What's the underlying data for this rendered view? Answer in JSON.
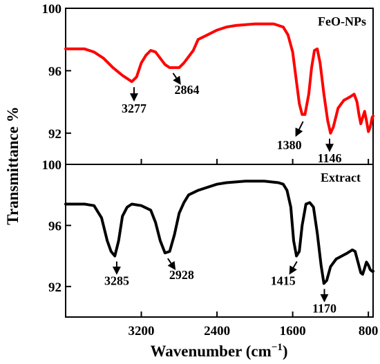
{
  "chart_data": {
    "type": "line",
    "xlabel": "Wavenumber (cm",
    "xlabel_sup": "−1",
    "xlabel_end": ")",
    "ylabel": "Transmittance %",
    "xlim": [
      4000,
      750
    ],
    "x_ticks": [
      {
        "value": 3200,
        "label": "3200"
      },
      {
        "value": 2400,
        "label": "2400"
      },
      {
        "value": 1600,
        "label": "1600"
      },
      {
        "value": 800,
        "label": "800"
      }
    ],
    "grid": false,
    "panels": [
      {
        "name": "FeO-NPs",
        "color": "#ff0000",
        "ylim": [
          90,
          100
        ],
        "y_ticks": [
          {
            "value": 100,
            "label": "100"
          },
          {
            "value": 96,
            "label": "96"
          },
          {
            "value": 92,
            "label": "92"
          }
        ],
        "points": [
          [
            4000,
            97.4
          ],
          [
            3800,
            97.4
          ],
          [
            3700,
            97.2
          ],
          [
            3600,
            96.8
          ],
          [
            3500,
            96.2
          ],
          [
            3400,
            95.7
          ],
          [
            3300,
            95.3
          ],
          [
            3250,
            95.6
          ],
          [
            3200,
            96.5
          ],
          [
            3150,
            97.0
          ],
          [
            3100,
            97.3
          ],
          [
            3050,
            97.2
          ],
          [
            3000,
            96.8
          ],
          [
            2950,
            96.4
          ],
          [
            2900,
            96.2
          ],
          [
            2800,
            96.2
          ],
          [
            2750,
            96.5
          ],
          [
            2700,
            96.9
          ],
          [
            2650,
            97.3
          ],
          [
            2600,
            98.0
          ],
          [
            2500,
            98.3
          ],
          [
            2400,
            98.6
          ],
          [
            2300,
            98.8
          ],
          [
            2200,
            98.9
          ],
          [
            2000,
            99.0
          ],
          [
            1800,
            99.0
          ],
          [
            1700,
            98.8
          ],
          [
            1650,
            98.3
          ],
          [
            1600,
            97.2
          ],
          [
            1560,
            95.3
          ],
          [
            1530,
            93.9
          ],
          [
            1500,
            93.2
          ],
          [
            1470,
            93.2
          ],
          [
            1430,
            94.5
          ],
          [
            1400,
            96.2
          ],
          [
            1370,
            97.3
          ],
          [
            1340,
            97.4
          ],
          [
            1310,
            96.5
          ],
          [
            1270,
            94.5
          ],
          [
            1230,
            92.8
          ],
          [
            1200,
            92.0
          ],
          [
            1170,
            92.4
          ],
          [
            1120,
            93.6
          ],
          [
            1060,
            94.1
          ],
          [
            1000,
            94.3
          ],
          [
            950,
            94.5
          ],
          [
            920,
            94.0
          ],
          [
            900,
            93.2
          ],
          [
            880,
            92.6
          ],
          [
            860,
            93.0
          ],
          [
            840,
            93.4
          ],
          [
            820,
            92.8
          ],
          [
            800,
            92.1
          ],
          [
            780,
            92.4
          ],
          [
            760,
            93.0
          ],
          [
            750,
            93.1
          ]
        ],
        "annotations": [
          {
            "label": "3277",
            "x": 3277,
            "y": 95.3
          },
          {
            "label": "2864",
            "x": 2864,
            "y": 96.2
          },
          {
            "label": "1380",
            "x": 1490,
            "y": 93.1
          },
          {
            "label": "1146",
            "x": 1210,
            "y": 92.0
          }
        ]
      },
      {
        "name": "Extract",
        "color": "#000000",
        "ylim": [
          90,
          100
        ],
        "y_ticks": [
          {
            "value": 100,
            "label": "100"
          },
          {
            "value": 96,
            "label": "96"
          },
          {
            "value": 92,
            "label": "92"
          }
        ],
        "points": [
          [
            4000,
            97.4
          ],
          [
            3800,
            97.4
          ],
          [
            3700,
            97.3
          ],
          [
            3620,
            96.5
          ],
          [
            3560,
            95.0
          ],
          [
            3520,
            94.3
          ],
          [
            3480,
            94.0
          ],
          [
            3440,
            95.0
          ],
          [
            3400,
            96.6
          ],
          [
            3350,
            97.2
          ],
          [
            3300,
            97.4
          ],
          [
            3200,
            97.3
          ],
          [
            3100,
            97.0
          ],
          [
            3050,
            96.2
          ],
          [
            3000,
            95.0
          ],
          [
            2950,
            94.2
          ],
          [
            2900,
            94.3
          ],
          [
            2850,
            95.4
          ],
          [
            2800,
            96.8
          ],
          [
            2750,
            97.5
          ],
          [
            2700,
            98.0
          ],
          [
            2600,
            98.3
          ],
          [
            2500,
            98.5
          ],
          [
            2400,
            98.7
          ],
          [
            2300,
            98.8
          ],
          [
            2100,
            98.9
          ],
          [
            1900,
            98.9
          ],
          [
            1750,
            98.8
          ],
          [
            1700,
            98.7
          ],
          [
            1660,
            98.3
          ],
          [
            1620,
            97.2
          ],
          [
            1590,
            95.0
          ],
          [
            1560,
            94.0
          ],
          [
            1530,
            94.3
          ],
          [
            1500,
            96.0
          ],
          [
            1460,
            97.4
          ],
          [
            1420,
            97.5
          ],
          [
            1380,
            97.2
          ],
          [
            1340,
            95.5
          ],
          [
            1300,
            93.4
          ],
          [
            1270,
            92.2
          ],
          [
            1240,
            92.4
          ],
          [
            1200,
            93.3
          ],
          [
            1140,
            93.8
          ],
          [
            1080,
            94.0
          ],
          [
            1020,
            94.2
          ],
          [
            970,
            94.4
          ],
          [
            940,
            94.3
          ],
          [
            910,
            93.6
          ],
          [
            880,
            92.9
          ],
          [
            860,
            92.8
          ],
          [
            840,
            93.2
          ],
          [
            820,
            93.6
          ],
          [
            800,
            93.4
          ],
          [
            780,
            93.1
          ],
          [
            760,
            93.0
          ],
          [
            750,
            93.0
          ]
        ],
        "annotations": [
          {
            "label": "3285",
            "x": 3460,
            "y": 94.0
          },
          {
            "label": "2928",
            "x": 2920,
            "y": 94.2
          },
          {
            "label": "1415",
            "x": 1555,
            "y": 94.0
          },
          {
            "label": "1170",
            "x": 1265,
            "y": 92.2
          }
        ]
      }
    ]
  }
}
